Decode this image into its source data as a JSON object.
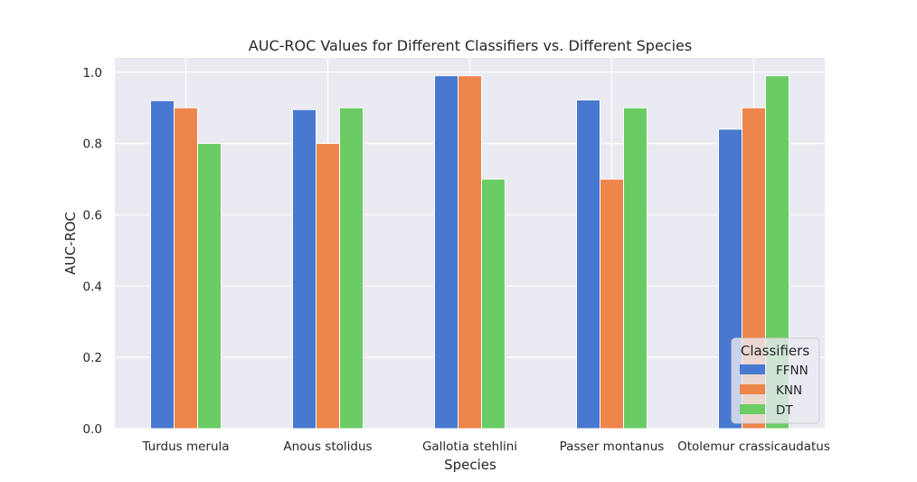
{
  "chart_data": {
    "type": "bar",
    "title": "AUC-ROC Values for Different Classifiers vs. Different Species",
    "xlabel": "Species",
    "ylabel": "AUC-ROC",
    "categories": [
      "Turdus merula",
      "Anous stolidus",
      "Gallotia stehlini",
      "Passer montanus",
      "Otolemur crassicaudatus"
    ],
    "series": [
      {
        "name": "FFNN",
        "color": "#4878d0",
        "values": [
          0.92,
          0.895,
          0.99,
          0.922,
          0.84
        ]
      },
      {
        "name": "KNN",
        "color": "#ee854a",
        "values": [
          0.9,
          0.8,
          0.99,
          0.7,
          0.9
        ]
      },
      {
        "name": "DT",
        "color": "#6acc64",
        "values": [
          0.8,
          0.9,
          0.7,
          0.9,
          0.99
        ]
      }
    ],
    "ylim": [
      0,
      1.04
    ],
    "yticks": [
      0.0,
      0.2,
      0.4,
      0.6,
      0.8,
      1.0
    ],
    "ytick_labels": [
      "0.0",
      "0.2",
      "0.4",
      "0.6",
      "0.8",
      "1.0"
    ],
    "grid": true,
    "legend": {
      "title": "Classifiers",
      "placement": "lower right"
    }
  }
}
